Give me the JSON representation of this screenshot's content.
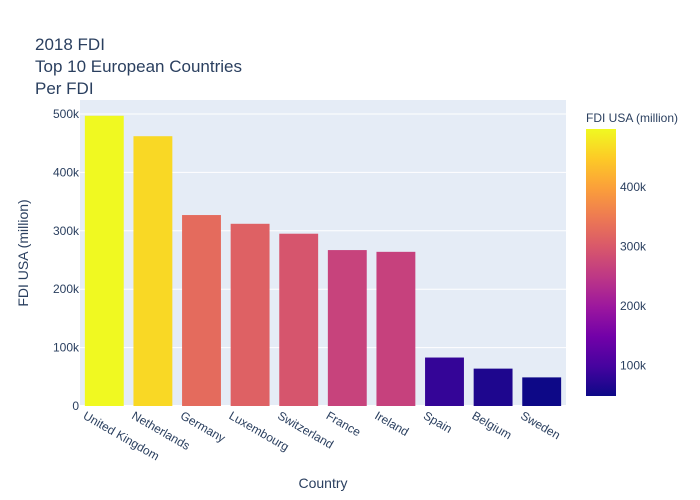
{
  "title": {
    "line1": "2018 FDI",
    "line2": "Top 10 European Countries",
    "line3": "Per FDI"
  },
  "colors": {
    "plot_bg": "#E5ECF6",
    "grid": "#ffffff",
    "text": "#2a3f5f",
    "colorscale": [
      "#0d0887",
      "#46039f",
      "#7201a8",
      "#9c179e",
      "#bd3786",
      "#d8576b",
      "#ed7953",
      "#fb9f3a",
      "#fdca26",
      "#f0f921"
    ]
  },
  "chart_data": {
    "type": "bar",
    "title": "2018 FDI Top 10 European Countries Per FDI",
    "xlabel": "Country",
    "ylabel": "FDI USA (million)",
    "categories": [
      "United Kingdom",
      "Netherlands",
      "Germany",
      "Luxembourg",
      "Switzerland",
      "France",
      "Ireland",
      "Spain",
      "Belgium",
      "Sweden"
    ],
    "values": [
      497000,
      462000,
      327000,
      312000,
      295000,
      267000,
      264000,
      83000,
      64000,
      49000
    ],
    "ylim": [
      0,
      524000
    ],
    "yticks": [
      0,
      100000,
      200000,
      300000,
      400000,
      500000
    ],
    "ytick_labels": [
      "0",
      "100k",
      "200k",
      "300k",
      "400k",
      "500k"
    ],
    "grid": true,
    "colorbar": {
      "title": "FDI USA (million)",
      "range": [
        49000,
        497000
      ],
      "ticks": [
        100000,
        200000,
        300000,
        400000
      ],
      "tick_labels": [
        "100k",
        "200k",
        "300k",
        "400k"
      ]
    }
  }
}
